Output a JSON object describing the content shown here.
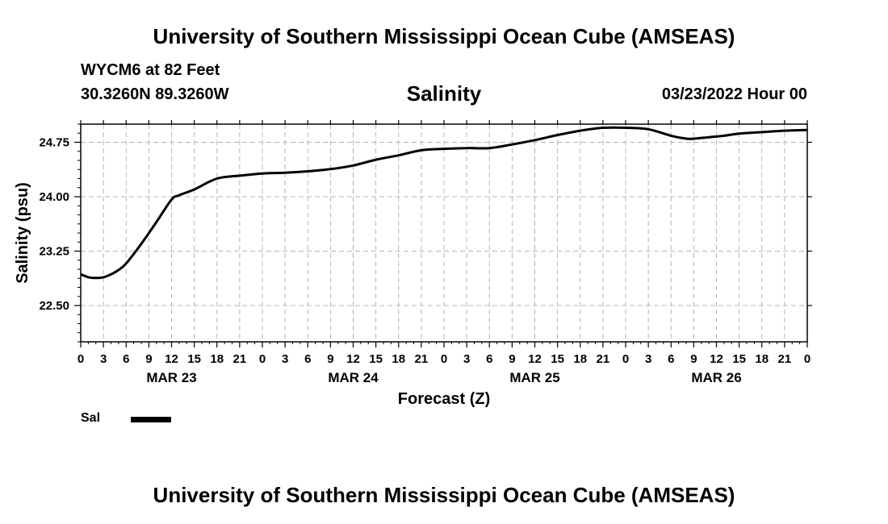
{
  "header": {
    "title": "University of Southern Mississippi Ocean Cube (AMSEAS)",
    "station": "WYCM6 at 82 Feet",
    "coordinates": "30.3260N  89.3260W",
    "variable": "Salinity",
    "datetime": "03/23/2022 Hour 00"
  },
  "footer": {
    "title": "University of Southern Mississippi Ocean Cube (AMSEAS)"
  },
  "legend": {
    "label": "Sal",
    "color": "#000000"
  },
  "chart_data": {
    "type": "line",
    "title": "Salinity",
    "xlabel": "Forecast (Z)",
    "ylabel": "Salinity (psu)",
    "xlim": [
      0,
      96
    ],
    "ylim": [
      22.0,
      25.0
    ],
    "yticks": [
      22.5,
      23.25,
      24.0,
      24.75
    ],
    "ytick_labels": [
      "22.50",
      "23.25",
      "24.00",
      "24.75"
    ],
    "xtick_step_hours": 3,
    "xtick_labels": [
      "0",
      "3",
      "6",
      "9",
      "12",
      "15",
      "18",
      "21",
      "0",
      "3",
      "6",
      "9",
      "12",
      "15",
      "18",
      "21",
      "0",
      "3",
      "6",
      "9",
      "12",
      "15",
      "18",
      "21",
      "0",
      "3",
      "6",
      "9",
      "12",
      "15",
      "18",
      "21",
      "0"
    ],
    "date_labels": [
      {
        "hour": 12,
        "label": "MAR 23"
      },
      {
        "hour": 36,
        "label": "MAR 24"
      },
      {
        "hour": 60,
        "label": "MAR 25"
      },
      {
        "hour": 84,
        "label": "MAR 26"
      }
    ],
    "grid": true,
    "series": [
      {
        "name": "Sal",
        "x": [
          0,
          1,
          2,
          3,
          4,
          5,
          6,
          8,
          10,
          12,
          13,
          15,
          18,
          21,
          24,
          27,
          30,
          33,
          36,
          39,
          42,
          45,
          48,
          51,
          54,
          57,
          60,
          63,
          66,
          69,
          72,
          75,
          78,
          80,
          81,
          83,
          85,
          87,
          90,
          93,
          96
        ],
        "values": [
          22.93,
          22.89,
          22.88,
          22.89,
          22.93,
          22.99,
          23.08,
          23.35,
          23.65,
          23.96,
          24.02,
          24.1,
          24.25,
          24.29,
          24.32,
          24.33,
          24.35,
          24.38,
          24.43,
          24.51,
          24.57,
          24.64,
          24.66,
          24.67,
          24.67,
          24.72,
          24.78,
          24.85,
          24.91,
          24.95,
          24.95,
          24.93,
          24.84,
          24.8,
          24.8,
          24.82,
          24.84,
          24.87,
          24.89,
          24.91,
          24.92
        ]
      }
    ]
  }
}
